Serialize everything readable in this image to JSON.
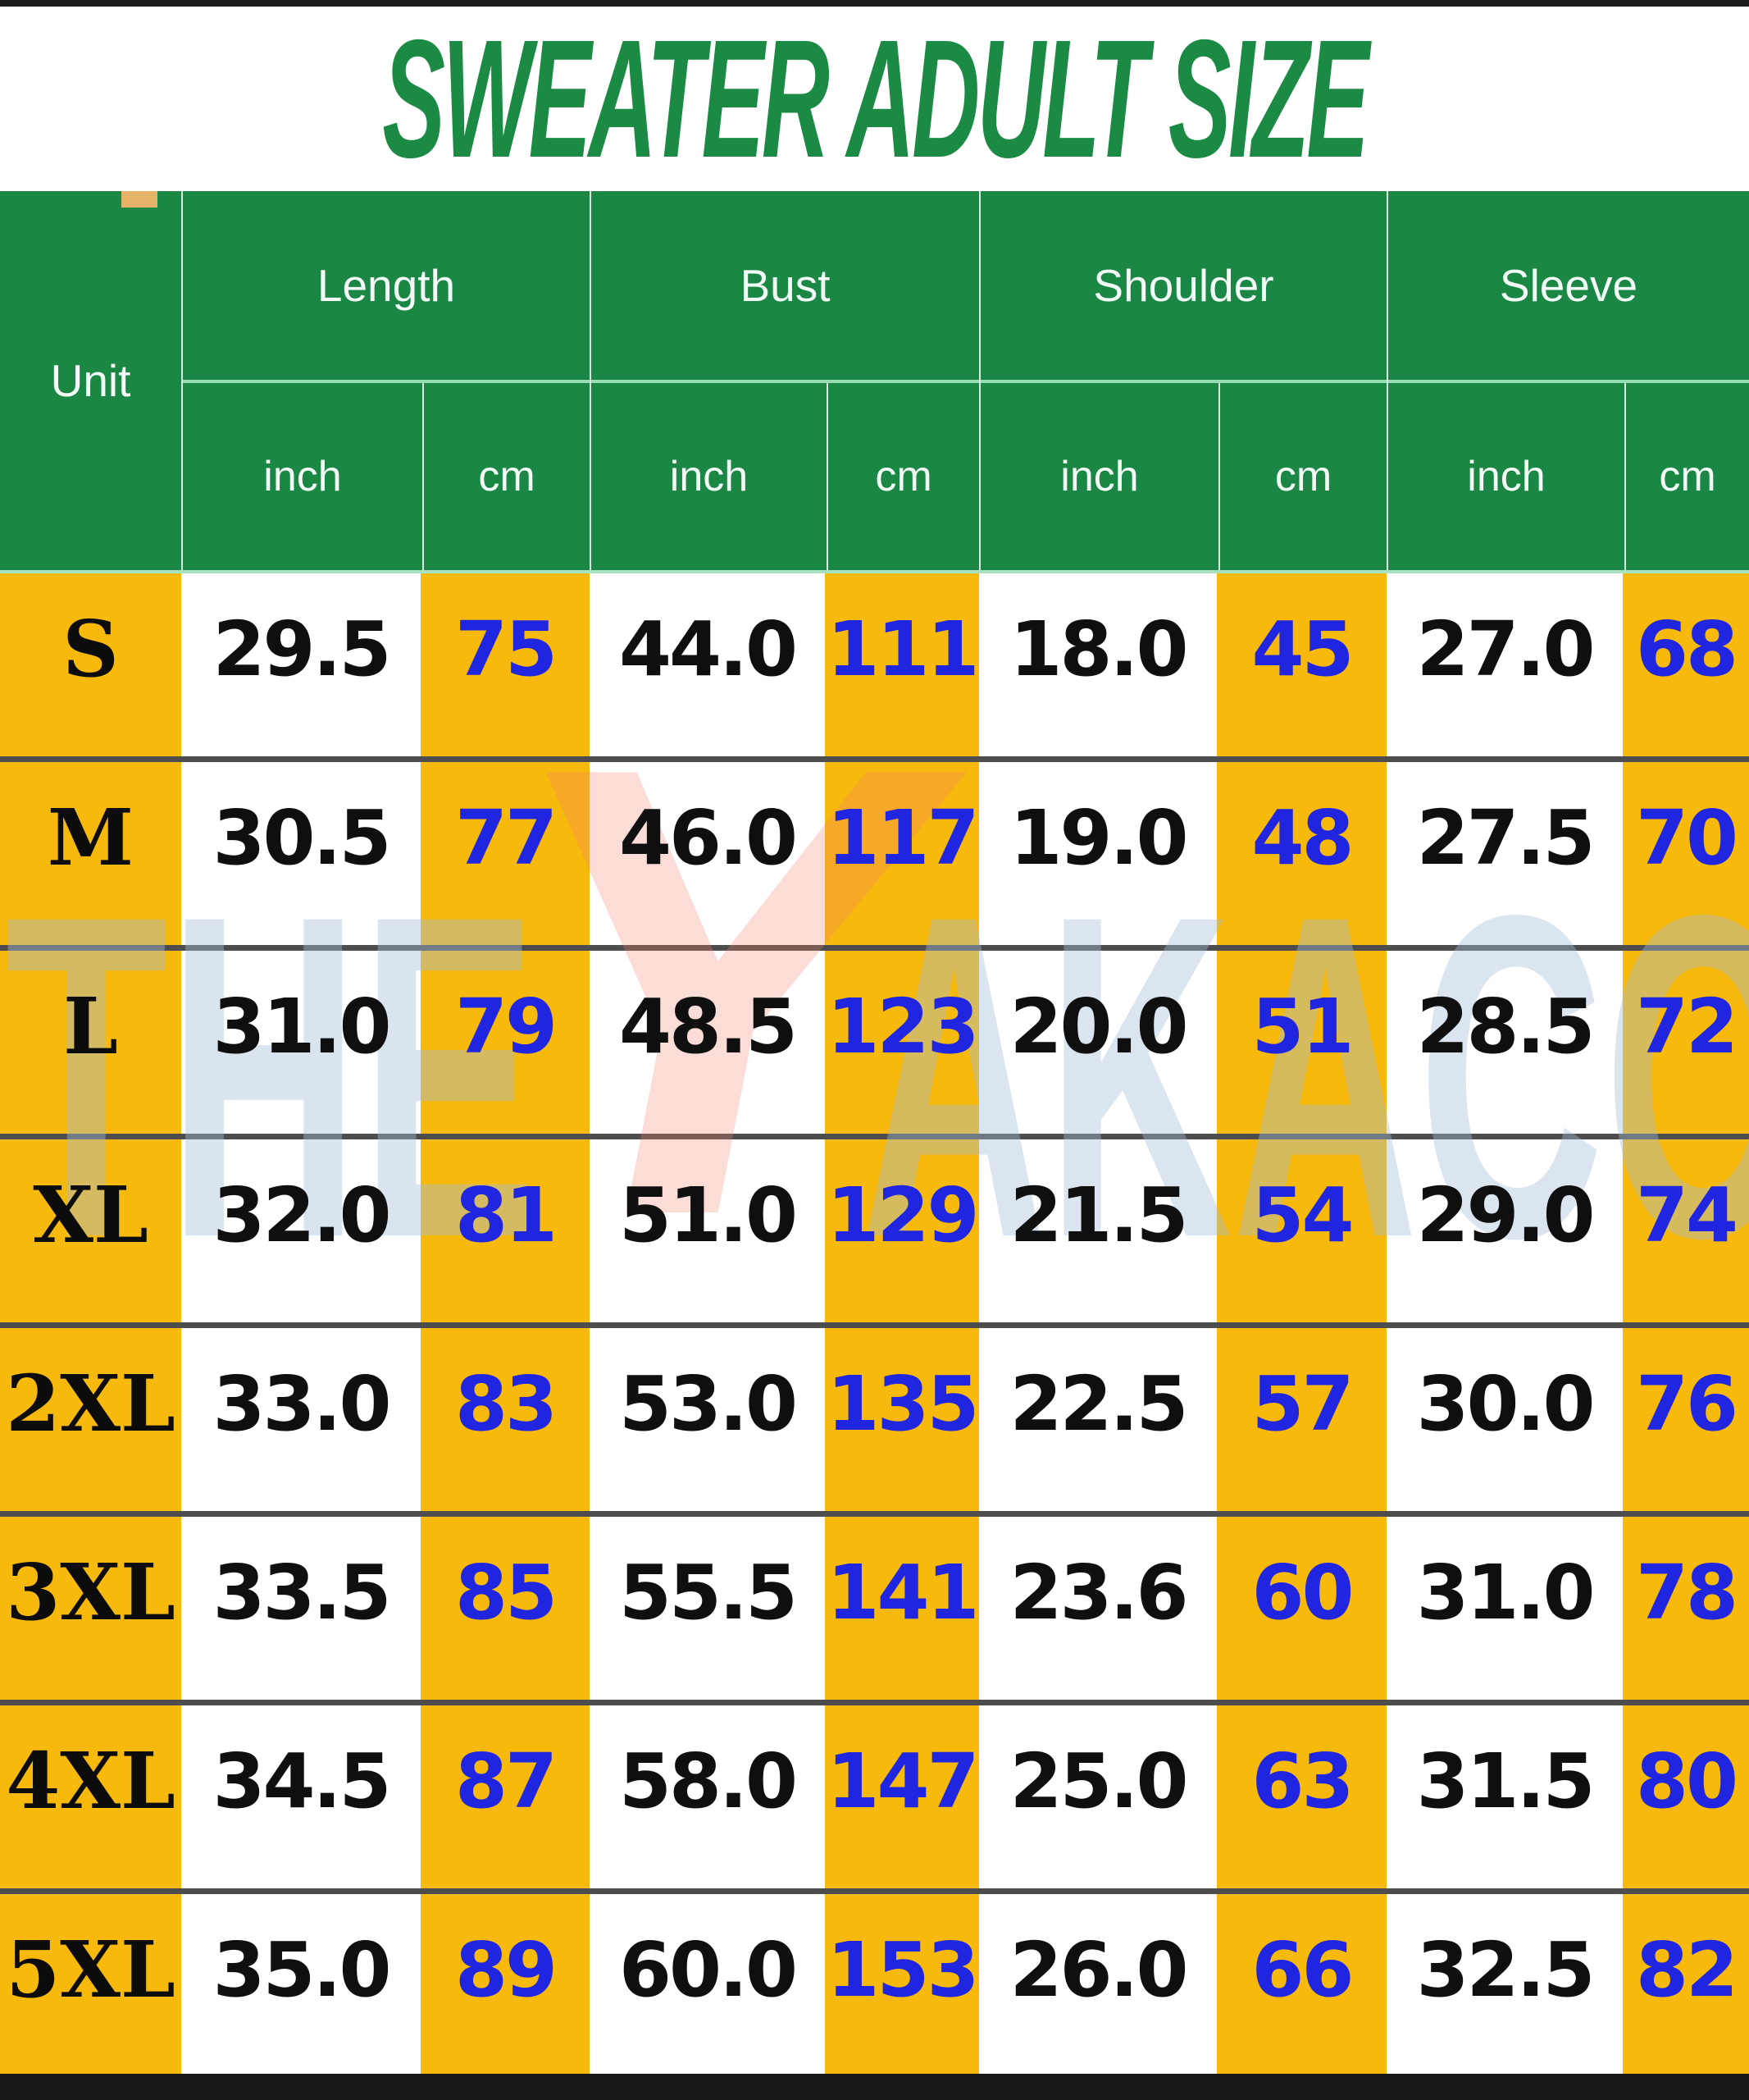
{
  "title": "SWEATER ADULT SIZE",
  "watermark": {
    "left": "THE",
    "logo": "Y",
    "right": "AKACOM"
  },
  "header": {
    "unit_label": "Unit",
    "groups": [
      {
        "label": "Length",
        "sub": [
          "inch",
          "cm"
        ]
      },
      {
        "label": "Bust",
        "sub": [
          "inch",
          "cm"
        ]
      },
      {
        "label": "Shoulder",
        "sub": [
          "inch",
          "cm"
        ]
      },
      {
        "label": "Sleeve",
        "sub": [
          "inch",
          "cm"
        ]
      }
    ]
  },
  "table": {
    "rows": [
      {
        "size": "S",
        "values": [
          "29.5",
          "75",
          "44.0",
          "111",
          "18.0",
          "45",
          "27.0",
          "68"
        ]
      },
      {
        "size": "M",
        "values": [
          "30.5",
          "77",
          "46.0",
          "117",
          "19.0",
          "48",
          "27.5",
          "70"
        ]
      },
      {
        "size": "L",
        "values": [
          "31.0",
          "79",
          "48.5",
          "123",
          "20.0",
          "51",
          "28.5",
          "72"
        ]
      },
      {
        "size": "XL",
        "values": [
          "32.0",
          "81",
          "51.0",
          "129",
          "21.5",
          "54",
          "29.0",
          "74"
        ]
      },
      {
        "size": "2XL",
        "values": [
          "33.0",
          "83",
          "53.0",
          "135",
          "22.5",
          "57",
          "30.0",
          "76"
        ]
      },
      {
        "size": "3XL",
        "values": [
          "33.5",
          "85",
          "55.5",
          "141",
          "23.6",
          "60",
          "31.0",
          "78"
        ]
      },
      {
        "size": "4XL",
        "values": [
          "34.5",
          "87",
          "58.0",
          "147",
          "25.0",
          "63",
          "31.5",
          "80"
        ]
      },
      {
        "size": "5XL",
        "values": [
          "35.0",
          "89",
          "60.0",
          "153",
          "26.0",
          "66",
          "32.5",
          "82"
        ]
      }
    ]
  },
  "colors": {
    "title_green": "#1b8a44",
    "header_green": "#1b8745",
    "header_divider_green": "#98dcb4",
    "cell_yellow": "#f7b90c",
    "value_blue": "#2026df",
    "value_black": "#0f0f0f",
    "row_separator_gray": "#4d4d4d",
    "bar_black": "#181818"
  },
  "chart_data": {
    "type": "table",
    "title": "SWEATER ADULT SIZE",
    "columns": [
      "Unit",
      "Length (inch)",
      "Length (cm)",
      "Bust (inch)",
      "Bust (cm)",
      "Shoulder (inch)",
      "Shoulder (cm)",
      "Sleeve (inch)",
      "Sleeve (cm)"
    ],
    "rows": [
      [
        "S",
        29.5,
        75,
        44.0,
        111,
        18.0,
        45,
        27.0,
        68
      ],
      [
        "M",
        30.5,
        77,
        46.0,
        117,
        19.0,
        48,
        27.5,
        70
      ],
      [
        "L",
        31.0,
        79,
        48.5,
        123,
        20.0,
        51,
        28.5,
        72
      ],
      [
        "XL",
        32.0,
        81,
        51.0,
        129,
        21.5,
        54,
        29.0,
        74
      ],
      [
        "2XL",
        33.0,
        83,
        53.0,
        135,
        22.5,
        57,
        30.0,
        76
      ],
      [
        "3XL",
        33.5,
        85,
        55.5,
        141,
        23.6,
        60,
        31.0,
        78
      ],
      [
        "4XL",
        34.5,
        87,
        58.0,
        147,
        25.0,
        63,
        31.5,
        80
      ],
      [
        "5XL",
        35.0,
        89,
        60.0,
        153,
        26.0,
        66,
        32.5,
        82
      ]
    ]
  }
}
